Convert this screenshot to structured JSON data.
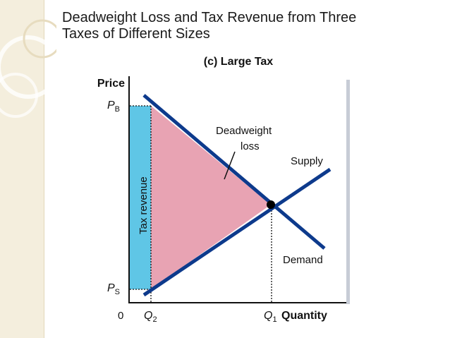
{
  "slide": {
    "title_line1": "Deadweight Loss and Tax Revenue from Three",
    "title_line2": "Taxes of Different Sizes"
  },
  "diagram": {
    "panel_title": "(c) Large Tax",
    "y_axis_label": "Price",
    "x_axis_label": "Quantity",
    "origin_label": "0",
    "pb_label": "P",
    "pb_sub": "B",
    "ps_label": "P",
    "ps_sub": "S",
    "q2_label": "Q",
    "q2_sub": "2",
    "q1_label": "Q",
    "q1_sub": "1",
    "tax_revenue_label": "Tax revenue",
    "deadweight_line1": "Deadweight",
    "deadweight_line2": "loss",
    "supply_label": "Supply",
    "demand_label": "Demand",
    "colors": {
      "curve": "#0d3a8c",
      "tax_revenue_fill": "#5fc6e6",
      "deadweight_fill": "#e8a3b3",
      "plot_bg": "#ffffff",
      "plot_shadow": "#c7ccd6",
      "deco": "#efe6cf"
    }
  }
}
